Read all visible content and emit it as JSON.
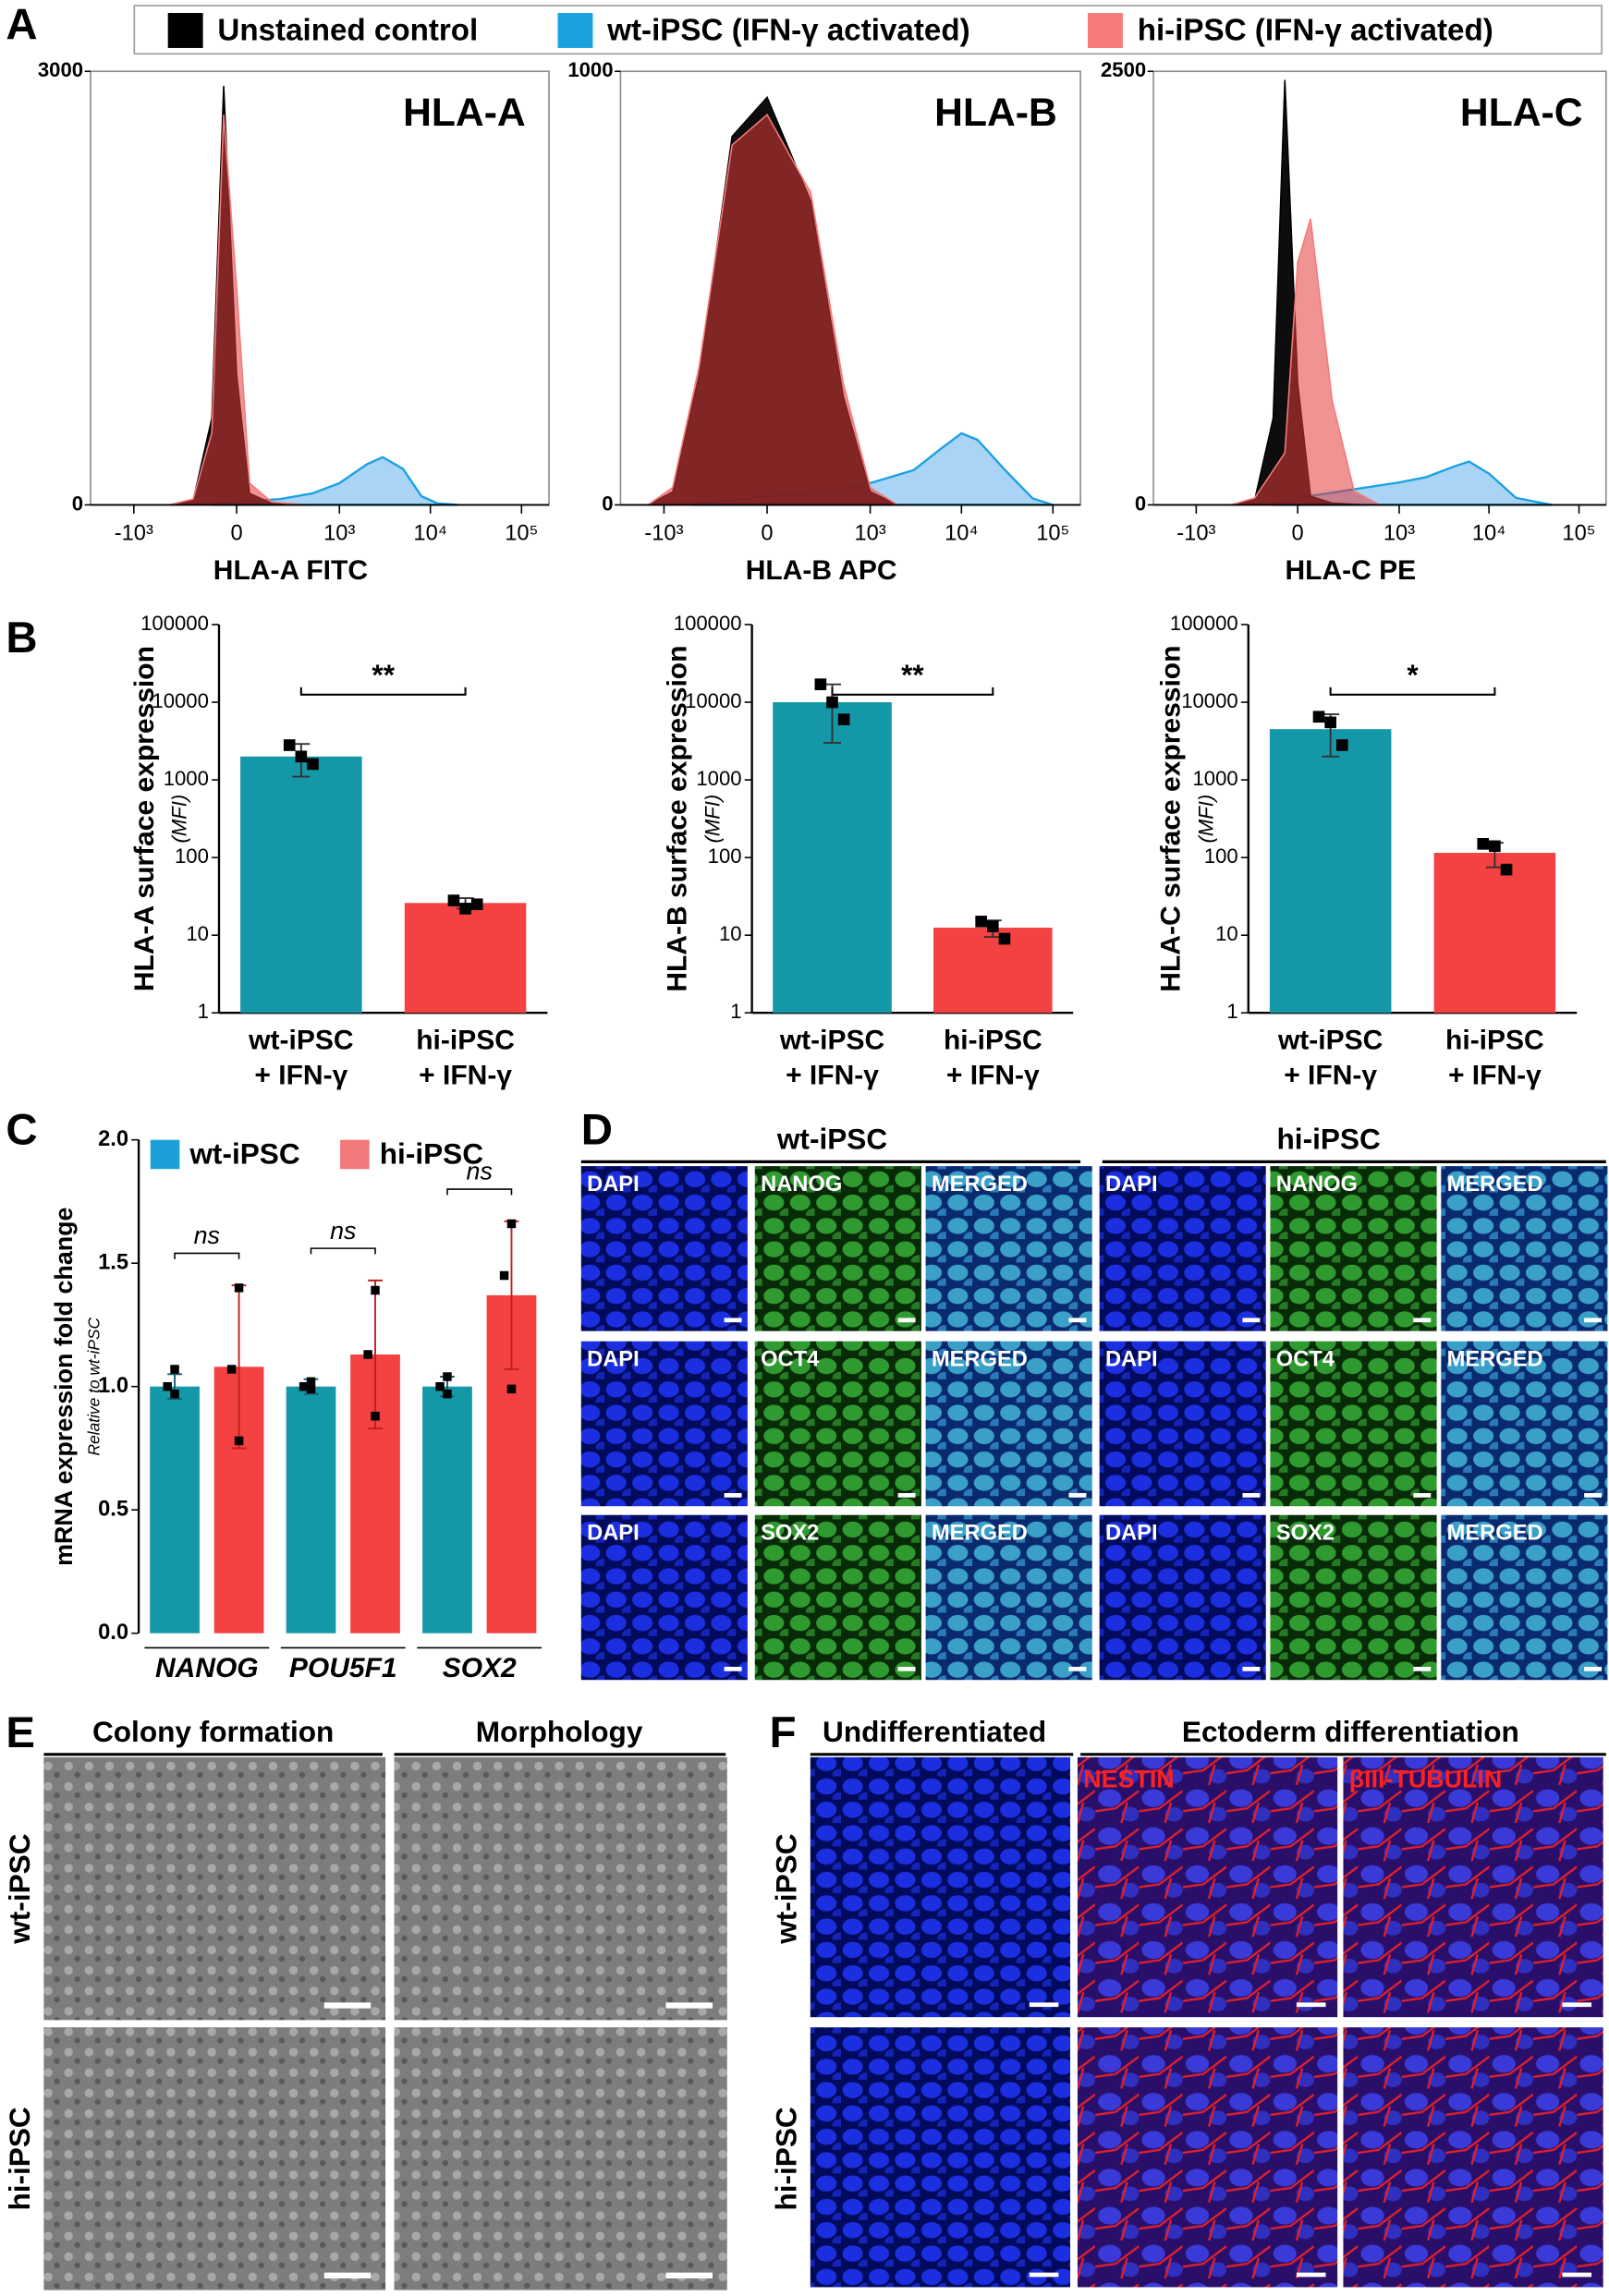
{
  "panel_labels": [
    "A",
    "B",
    "C",
    "D",
    "E",
    "F"
  ],
  "chart_data": [
    {
      "type": "area",
      "title": "HLA-A",
      "xlabel": "HLA-A FITC",
      "xscale": "biexponential",
      "xlim": [
        -3000,
        200000
      ],
      "xticks": [
        {
          "value": -1000,
          "label": "-10³"
        },
        0,
        {
          "value": 1000,
          "label": "10³"
        },
        {
          "value": 10000,
          "label": "10⁴"
        },
        {
          "value": 100000,
          "label": "10⁵"
        }
      ],
      "ylim": [
        0,
        3000
      ],
      "yticks": [
        0,
        3000
      ],
      "series": [
        {
          "name": "Unstained control",
          "color": "#000000",
          "fill": "#000000",
          "x": [
            -400,
            -200,
            -100,
            -50,
            0,
            50,
            150,
            400
          ],
          "values": [
            0,
            30,
            600,
            2900,
            900,
            80,
            10,
            0
          ]
        },
        {
          "name": "wt-iPSC (IFN-γ activated)",
          "color": "#1ba1e0",
          "fill": "#a9d4f5",
          "x": [
            -100,
            0,
            200,
            500,
            1000,
            2000,
            3000,
            5000,
            8000,
            12000,
            20000
          ],
          "values": [
            0,
            20,
            40,
            80,
            150,
            280,
            330,
            250,
            60,
            10,
            0
          ]
        },
        {
          "name": "hi-iPSC (IFN-γ activated)",
          "color": "#f57a7a",
          "fill": "#e23a3a",
          "x": [
            -400,
            -200,
            -100,
            -50,
            0,
            50,
            150,
            400
          ],
          "values": [
            0,
            40,
            500,
            2700,
            1500,
            150,
            20,
            0
          ]
        }
      ]
    },
    {
      "type": "area",
      "title": "HLA-B",
      "xlabel": "HLA-B APC",
      "xscale": "biexponential",
      "xlim": [
        -3000,
        200000
      ],
      "xticks": [
        {
          "value": -1000,
          "label": "-10³"
        },
        0,
        {
          "value": 1000,
          "label": "10³"
        },
        {
          "value": 10000,
          "label": "10⁴"
        },
        {
          "value": 100000,
          "label": "10⁵"
        }
      ],
      "ylim": [
        0,
        1000
      ],
      "yticks": [
        0,
        1000
      ],
      "series": [
        {
          "color": "#000000",
          "fill": "#000000",
          "x": [
            -1500,
            -800,
            -400,
            -150,
            0,
            200,
            500,
            1000,
            2000
          ],
          "values": [
            0,
            30,
            300,
            850,
            940,
            700,
            250,
            30,
            0
          ]
        },
        {
          "color": "#1ba1e0",
          "fill": "#a9d4f5",
          "x": [
            -500,
            0,
            500,
            1000,
            3000,
            6000,
            10000,
            15000,
            30000,
            60000,
            100000
          ],
          "values": [
            0,
            20,
            35,
            50,
            80,
            130,
            165,
            150,
            80,
            15,
            0
          ]
        },
        {
          "color": "#f57a7a",
          "fill": "#e23a3a",
          "x": [
            -1500,
            -800,
            -400,
            -150,
            0,
            200,
            500,
            1000,
            2000
          ],
          "values": [
            0,
            40,
            320,
            830,
            900,
            720,
            280,
            40,
            0
          ]
        }
      ]
    },
    {
      "type": "area",
      "title": "HLA-C",
      "xlabel": "HLA-C PE",
      "xscale": "biexponential",
      "xlim": [
        -3000,
        200000
      ],
      "xticks": [
        {
          "value": -1000,
          "label": "-10³"
        },
        0,
        {
          "value": 1000,
          "label": "10³"
        },
        {
          "value": 10000,
          "label": "10⁴"
        },
        {
          "value": 100000,
          "label": "10⁵"
        }
      ],
      "ylim": [
        0,
        2500
      ],
      "yticks": [
        0,
        2500
      ],
      "series": [
        {
          "color": "#000000",
          "fill": "#000000",
          "x": [
            -400,
            -200,
            -100,
            -50,
            0,
            50,
            150,
            400
          ],
          "values": [
            0,
            30,
            500,
            2450,
            700,
            50,
            10,
            0
          ]
        },
        {
          "color": "#1ba1e0",
          "fill": "#a9d4f5",
          "x": [
            -100,
            0,
            300,
            1000,
            2000,
            4000,
            6000,
            10000,
            20000,
            50000
          ],
          "values": [
            0,
            40,
            90,
            130,
            160,
            220,
            250,
            180,
            40,
            0
          ]
        },
        {
          "color": "#f57a7a",
          "fill": "#e23a3a",
          "x": [
            -400,
            -200,
            -50,
            0,
            50,
            150,
            300,
            600
          ],
          "values": [
            0,
            40,
            300,
            1400,
            1650,
            600,
            80,
            0
          ]
        }
      ]
    },
    {
      "type": "bar",
      "ylabel": "HLA-A surface expression",
      "ylabel_note": "(MFI)",
      "log": true,
      "categories": [
        [
          "wt-iPSC",
          "+ IFN-γ"
        ],
        [
          "hi-iPSC",
          "+ IFN-γ"
        ]
      ],
      "colors": [
        "#1497a6",
        "#f44141"
      ],
      "values": [
        2000,
        26
      ],
      "errors": [
        900,
        4
      ],
      "points": [
        [
          2800,
          2000,
          1600
        ],
        [
          28,
          22,
          25
        ]
      ],
      "ylim": [
        1,
        100000
      ],
      "yticks": [
        1,
        10,
        100,
        1000,
        10000,
        100000
      ],
      "significance": "**"
    },
    {
      "type": "bar",
      "ylabel": "HLA-B surface expression",
      "ylabel_note": "(MFI)",
      "log": true,
      "categories": [
        [
          "wt-iPSC",
          "+ IFN-γ"
        ],
        [
          "hi-iPSC",
          "+ IFN-γ"
        ]
      ],
      "colors": [
        "#1497a6",
        "#f44141"
      ],
      "values": [
        10000,
        12.5
      ],
      "errors": [
        7000,
        3
      ],
      "points": [
        [
          17000,
          10000,
          6000
        ],
        [
          15,
          13,
          9
        ]
      ],
      "ylim": [
        1,
        100000
      ],
      "yticks": [
        1,
        10,
        100,
        1000,
        10000,
        100000
      ],
      "significance": "**"
    },
    {
      "type": "bar",
      "ylabel": "HLA-C surface expression",
      "ylabel_note": "(MFI)",
      "log": true,
      "categories": [
        [
          "wt-iPSC",
          "+ IFN-γ"
        ],
        [
          "hi-iPSC",
          "+ IFN-γ"
        ]
      ],
      "colors": [
        "#1497a6",
        "#f44141"
      ],
      "values": [
        4500,
        115
      ],
      "errors": [
        2500,
        40
      ],
      "points": [
        [
          6500,
          5500,
          2800
        ],
        [
          150,
          140,
          70
        ]
      ],
      "ylim": [
        1,
        100000
      ],
      "yticks": [
        1,
        10,
        100,
        1000,
        10000,
        100000
      ],
      "significance": "*"
    },
    {
      "type": "grouped_bar",
      "ylabel": "mRNA expression fold change",
      "ylabel_note": "Relative to wt-iPSC",
      "categories": [
        "NANOG",
        "POU5F1",
        "SOX2"
      ],
      "series": [
        {
          "name": "wt-iPSC",
          "color": "#1497a6",
          "legend_color": "#1ba1d8",
          "values": [
            1.0,
            1.0,
            1.0
          ],
          "errors": [
            0.05,
            0.03,
            0.04
          ],
          "points": [
            [
              1.07,
              1.0,
              0.97
            ],
            [
              1.02,
              1.0,
              0.99
            ],
            [
              1.04,
              1.0,
              0.97
            ]
          ]
        },
        {
          "name": "hi-iPSC",
          "color": "#f44141",
          "legend_color": "#f27a7a",
          "values": [
            1.08,
            1.13,
            1.37
          ],
          "errors": [
            0.33,
            0.3,
            0.3
          ],
          "points": [
            [
              1.4,
              1.07,
              0.78
            ],
            [
              1.39,
              1.13,
              0.88
            ],
            [
              1.66,
              1.45,
              0.99
            ]
          ]
        }
      ],
      "ylim": [
        0,
        2
      ],
      "yticks": [
        {
          "value": 0,
          "label": "0.0"
        },
        {
          "value": 0.5,
          "label": "0.5"
        },
        {
          "value": 1,
          "label": "1.0"
        },
        {
          "value": 1.5,
          "label": "1.5"
        },
        {
          "value": 2,
          "label": "2.0"
        }
      ],
      "significance": [
        "ns",
        "ns",
        "ns"
      ]
    }
  ],
  "panel_d": {
    "groups": [
      "wt-iPSC",
      "hi-iPSC"
    ],
    "rows": [
      [
        "DAPI",
        "NANOG",
        "MERGED",
        "DAPI",
        "NANOG",
        "MERGED"
      ],
      [
        "DAPI",
        "OCT4",
        "MERGED",
        "DAPI",
        "OCT4",
        "MERGED"
      ],
      [
        "DAPI",
        "SOX2",
        "MERGED",
        "DAPI",
        "SOX2",
        "MERGED"
      ]
    ]
  },
  "panel_e": {
    "columns": [
      "Colony formation",
      "Morphology"
    ],
    "rows": [
      "wt-iPSC",
      "hi-iPSC"
    ]
  },
  "panel_f": {
    "columns": [
      "Undifferentiated",
      "Ectoderm differentiation"
    ],
    "stains": [
      "NESTIN",
      "βIII-TUBULIN"
    ],
    "rows": [
      "wt-iPSC",
      "hi-iPSC"
    ]
  }
}
